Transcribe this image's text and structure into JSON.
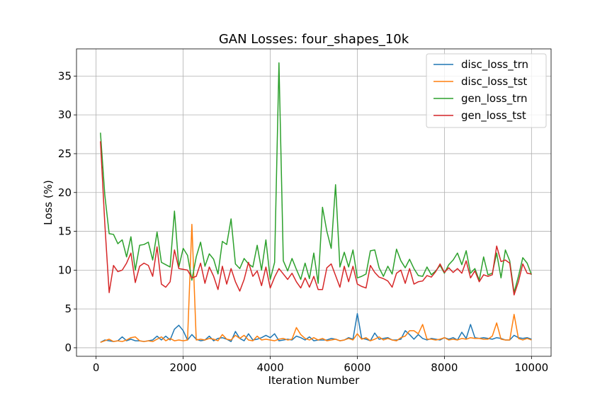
{
  "chart_data": {
    "type": "line",
    "title": "GAN Losses: four_shapes_10k",
    "xlabel": "Iteration Number",
    "ylabel": "Loss (%)",
    "xlim": [
      -450,
      10450
    ],
    "ylim": [
      -1.1,
      38.5
    ],
    "xticks": [
      0,
      2000,
      4000,
      6000,
      8000,
      10000
    ],
    "yticks": [
      0,
      5,
      10,
      15,
      20,
      25,
      30,
      35
    ],
    "grid": true,
    "legend_position": "top-right",
    "x": [
      100,
      200,
      300,
      400,
      500,
      600,
      700,
      800,
      900,
      1000,
      1100,
      1200,
      1300,
      1400,
      1500,
      1600,
      1700,
      1800,
      1900,
      2000,
      2100,
      2200,
      2300,
      2400,
      2500,
      2600,
      2700,
      2800,
      2900,
      3000,
      3100,
      3200,
      3300,
      3400,
      3500,
      3600,
      3700,
      3800,
      3900,
      4000,
      4100,
      4200,
      4300,
      4400,
      4500,
      4600,
      4700,
      4800,
      4900,
      5000,
      5100,
      5200,
      5300,
      5400,
      5500,
      5600,
      5700,
      5800,
      5900,
      6000,
      6100,
      6200,
      6300,
      6400,
      6500,
      6600,
      6700,
      6800,
      6900,
      7000,
      7100,
      7200,
      7300,
      7400,
      7500,
      7600,
      7700,
      7800,
      7900,
      8000,
      8100,
      8200,
      8300,
      8400,
      8500,
      8600,
      8700,
      8800,
      8900,
      9000,
      9100,
      9200,
      9300,
      9400,
      9500,
      9600,
      9700,
      9800,
      9900,
      10000
    ],
    "series": [
      {
        "name": "disc_loss_trn",
        "color": "#1f77b4",
        "values": [
          0.7,
          1.0,
          0.9,
          0.8,
          0.9,
          1.4,
          0.9,
          1.1,
          0.9,
          0.9,
          0.8,
          0.9,
          1.0,
          1.5,
          1.0,
          1.5,
          1.0,
          2.4,
          2.9,
          2.2,
          1.0,
          1.7,
          1.1,
          0.9,
          1.0,
          1.5,
          0.9,
          1.2,
          1.3,
          1.1,
          0.8,
          2.1,
          1.2,
          0.9,
          1.8,
          1.0,
          1.1,
          1.3,
          1.6,
          1.3,
          1.8,
          0.9,
          1.0,
          1.1,
          1.0,
          1.5,
          1.3,
          1.0,
          1.4,
          0.9,
          1.0,
          1.0,
          1.0,
          1.2,
          1.1,
          0.9,
          1.0,
          1.3,
          1.1,
          4.4,
          1.2,
          1.1,
          0.9,
          1.9,
          1.1,
          1.2,
          1.3,
          1.0,
          1.0,
          1.1,
          2.2,
          1.7,
          1.1,
          1.7,
          1.2,
          1.0,
          1.2,
          1.1,
          1.0,
          1.3,
          1.1,
          1.3,
          1.0,
          2.0,
          1.2,
          3.0,
          1.3,
          1.2,
          1.3,
          1.2,
          1.1,
          1.3,
          1.2,
          1.0,
          1.0,
          1.6,
          1.3,
          1.2,
          1.3,
          1.1
        ]
      },
      {
        "name": "disc_loss_tst",
        "color": "#ff7f0e",
        "values": [
          0.7,
          0.9,
          1.1,
          0.8,
          0.9,
          0.8,
          1.0,
          1.3,
          1.4,
          0.9,
          0.8,
          0.9,
          0.8,
          1.1,
          1.4,
          0.9,
          1.2,
          0.9,
          1.0,
          0.9,
          1.0,
          15.9,
          1.0,
          1.1,
          1.0,
          1.2,
          1.1,
          0.9,
          1.7,
          1.1,
          1.0,
          1.6,
          1.2,
          1.6,
          1.0,
          0.9,
          1.5,
          1.0,
          1.1,
          1.0,
          0.9,
          1.1,
          1.2,
          1.0,
          1.1,
          2.6,
          1.7,
          1.2,
          1.0,
          1.3,
          1.0,
          1.2,
          0.9,
          1.0,
          1.1,
          0.9,
          1.0,
          1.2,
          1.0,
          1.8,
          1.1,
          1.3,
          0.9,
          1.1,
          1.4,
          1.0,
          1.2,
          1.0,
          0.9,
          1.3,
          1.5,
          2.2,
          2.2,
          1.8,
          3.0,
          1.1,
          1.1,
          1.0,
          1.1,
          1.3,
          1.0,
          1.1,
          1.0,
          1.2,
          1.1,
          1.3,
          1.2,
          1.2,
          1.1,
          1.1,
          1.5,
          3.2,
          1.1,
          1.0,
          1.0,
          4.3,
          1.2,
          1.0,
          1.2,
          1.0
        ]
      },
      {
        "name": "gen_loss_trn",
        "color": "#2ca02c",
        "values": [
          27.7,
          19.7,
          14.7,
          14.6,
          13.4,
          13.9,
          11.7,
          14.3,
          10.0,
          13.2,
          13.3,
          13.6,
          11.3,
          14.9,
          11.0,
          10.7,
          10.4,
          17.6,
          10.4,
          12.8,
          11.9,
          8.7,
          11.7,
          13.6,
          10.5,
          12.1,
          11.4,
          9.5,
          13.7,
          13.3,
          16.6,
          10.8,
          10.2,
          11.5,
          10.8,
          10.4,
          13.2,
          10.0,
          13.9,
          8.8,
          11.0,
          36.7,
          11.2,
          9.9,
          11.5,
          10.1,
          8.8,
          10.9,
          8.9,
          12.2,
          8.3,
          18.1,
          15.0,
          12.8,
          21.0,
          10.4,
          12.3,
          10.4,
          12.6,
          9.0,
          9.2,
          9.5,
          12.5,
          12.6,
          10.3,
          9.2,
          10.5,
          9.5,
          12.7,
          11.2,
          10.3,
          11.4,
          10.2,
          9.3,
          9.2,
          10.4,
          9.4,
          9.9,
          10.6,
          9.6,
          10.7,
          11.3,
          12.2,
          10.7,
          12.5,
          9.6,
          10.2,
          8.7,
          11.7,
          9.4,
          9.6,
          12.2,
          9.0,
          12.6,
          11.2,
          7.1,
          9.2,
          11.6,
          10.9,
          9.4
        ]
      },
      {
        "name": "gen_loss_tst",
        "color": "#d62728",
        "values": [
          26.6,
          16.0,
          7.1,
          10.6,
          9.8,
          10.0,
          10.9,
          12.2,
          8.4,
          10.5,
          10.9,
          10.6,
          9.2,
          13.0,
          8.2,
          7.8,
          8.5,
          12.6,
          10.2,
          10.1,
          10.0,
          9.0,
          9.2,
          10.9,
          8.3,
          10.4,
          9.2,
          7.5,
          10.5,
          8.2,
          10.2,
          8.5,
          7.3,
          8.8,
          11.0,
          9.2,
          9.9,
          8.0,
          10.4,
          7.7,
          9.1,
          10.2,
          9.5,
          8.8,
          9.6,
          8.5,
          7.7,
          9.0,
          7.8,
          9.2,
          7.5,
          7.5,
          10.3,
          10.8,
          9.3,
          7.8,
          10.5,
          8.5,
          10.5,
          8.2,
          7.9,
          7.7,
          10.6,
          9.7,
          9.1,
          8.9,
          8.6,
          7.8,
          9.6,
          10.0,
          8.3,
          10.2,
          8.2,
          8.5,
          8.6,
          9.3,
          9.1,
          9.8,
          10.8,
          9.7,
          10.3,
          9.7,
          10.2,
          9.6,
          11.2,
          9.0,
          9.9,
          8.5,
          9.4,
          9.2,
          9.4,
          13.1,
          11.1,
          11.3,
          10.9,
          6.8,
          8.5,
          10.8,
          9.6,
          9.5
        ]
      }
    ]
  }
}
